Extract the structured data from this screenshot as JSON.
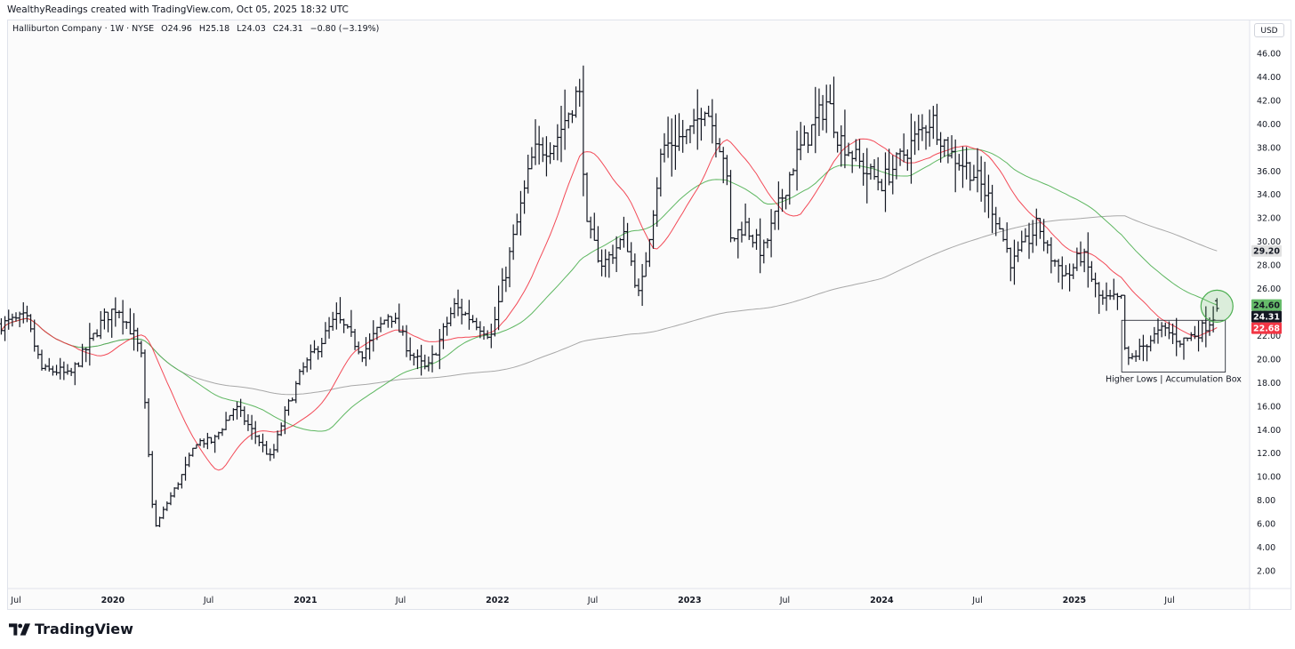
{
  "header": {
    "credit": "WealthyReadings created with TradingView.com, Oct 05, 2025 18:32 UTC",
    "currency": "USD"
  },
  "legend": {
    "title": "Halliburton Company · 1W · NYSE",
    "open": "O24.96",
    "high": "H25.18",
    "low": "L24.03",
    "close": "C24.31",
    "change": "−0.80 (−3.19%)"
  },
  "brand": {
    "name": "TradingView",
    "logo_icon": "tradingview-logo-icon"
  },
  "colors": {
    "background": "#fbfbfb",
    "bars": "#131722",
    "ma_fast": "#f23645",
    "ma_mid": "#089981",
    "ma_mid_line": "#4caf50",
    "ma_slow": "#9e9e9e",
    "label_last_bg": "#131722",
    "label_fast_bg": "#f23645",
    "label_mid_bg": "#66bb6a",
    "label_slow_bg": "#e0e0e0",
    "circle": "#4caf50"
  },
  "chart_data": {
    "type": "ohlc",
    "interval": "weekly",
    "y_range": [
      0.5,
      48.5
    ],
    "y_ticks": [
      "2.00",
      "4.00",
      "6.00",
      "8.00",
      "10.00",
      "12.00",
      "14.00",
      "16.00",
      "18.00",
      "20.00",
      "22.00",
      "24.00",
      "26.00",
      "28.00",
      "30.00",
      "32.00",
      "34.00",
      "36.00",
      "38.00",
      "40.00",
      "42.00",
      "44.00",
      "46.00"
    ],
    "x_labels": [
      {
        "label": "Jul",
        "date": "2019-07-01"
      },
      {
        "label": "2020",
        "date": "2020-01-01"
      },
      {
        "label": "Jul",
        "date": "2020-07-01"
      },
      {
        "label": "2021",
        "date": "2021-01-01"
      },
      {
        "label": "Jul",
        "date": "2021-07-01"
      },
      {
        "label": "2022",
        "date": "2022-01-01"
      },
      {
        "label": "Jul",
        "date": "2022-07-01"
      },
      {
        "label": "2023",
        "date": "2023-01-01"
      },
      {
        "label": "Jul",
        "date": "2023-07-01"
      },
      {
        "label": "2024",
        "date": "2024-01-01"
      },
      {
        "label": "Jul",
        "date": "2024-07-01"
      },
      {
        "label": "2025",
        "date": "2025-01-01"
      },
      {
        "label": "Jul",
        "date": "2025-07-01"
      }
    ],
    "price_path": [
      [
        "2019-06-10",
        23.0
      ],
      [
        "2019-07-20",
        23.5
      ],
      [
        "2019-08-20",
        19.0
      ],
      [
        "2019-09-20",
        19.0
      ],
      [
        "2019-10-10",
        18.5
      ],
      [
        "2019-11-20",
        21.5
      ],
      [
        "2019-12-15",
        23.5
      ],
      [
        "2020-01-10",
        24.5
      ],
      [
        "2020-02-10",
        22.0
      ],
      [
        "2020-02-25",
        20.0
      ],
      [
        "2020-03-05",
        14.0
      ],
      [
        "2020-03-20",
        5.5
      ],
      [
        "2020-04-10",
        7.5
      ],
      [
        "2020-05-10",
        10.0
      ],
      [
        "2020-06-08",
        13.0
      ],
      [
        "2020-07-10",
        13.0
      ],
      [
        "2020-08-20",
        16.0
      ],
      [
        "2020-09-20",
        14.0
      ],
      [
        "2020-10-28",
        11.5
      ],
      [
        "2020-11-20",
        15.0
      ],
      [
        "2020-12-25",
        19.0
      ],
      [
        "2021-03-01",
        23.5
      ],
      [
        "2021-04-20",
        20.5
      ],
      [
        "2021-06-10",
        24.0
      ],
      [
        "2021-07-20",
        20.5
      ],
      [
        "2021-08-20",
        19.0
      ],
      [
        "2021-10-10",
        24.5
      ],
      [
        "2021-11-25",
        23.0
      ],
      [
        "2021-12-20",
        22.0
      ],
      [
        "2022-01-30",
        30.0
      ],
      [
        "2022-03-10",
        37.5
      ],
      [
        "2022-04-20",
        38.5
      ],
      [
        "2022-06-05",
        43.0
      ],
      [
        "2022-06-20",
        31.0
      ],
      [
        "2022-07-20",
        28.0
      ],
      [
        "2022-09-01",
        30.5
      ],
      [
        "2022-09-28",
        25.0
      ],
      [
        "2022-11-10",
        38.0
      ],
      [
        "2023-01-10",
        39.5
      ],
      [
        "2023-01-28",
        42.0
      ],
      [
        "2023-03-10",
        37.0
      ],
      [
        "2023-03-20",
        30.0
      ],
      [
        "2023-04-15",
        31.5
      ],
      [
        "2023-05-20",
        29.0
      ],
      [
        "2023-07-20",
        37.0
      ],
      [
        "2023-09-20",
        42.0
      ],
      [
        "2023-10-10",
        39.0
      ],
      [
        "2023-12-01",
        36.0
      ],
      [
        "2024-01-01",
        35.0
      ],
      [
        "2024-03-01",
        38.5
      ],
      [
        "2024-04-05",
        40.5
      ],
      [
        "2024-05-10",
        37.5
      ],
      [
        "2024-06-20",
        36.0
      ],
      [
        "2024-07-25",
        33.5
      ],
      [
        "2024-09-05",
        28.0
      ],
      [
        "2024-10-25",
        31.5
      ],
      [
        "2024-11-12",
        29.0
      ],
      [
        "2024-12-20",
        27.0
      ],
      [
        "2025-01-15",
        29.0
      ],
      [
        "2025-02-20",
        25.0
      ],
      [
        "2025-04-01",
        25.0
      ],
      [
        "2025-04-09",
        19.5
      ],
      [
        "2025-05-20",
        21.5
      ],
      [
        "2025-06-20",
        22.5
      ],
      [
        "2025-07-25",
        21.5
      ],
      [
        "2025-08-30",
        22.5
      ],
      [
        "2025-09-20",
        23.5
      ],
      [
        "2025-10-03",
        24.6
      ]
    ],
    "last_bar": {
      "date": "2025-09-29",
      "open": 24.96,
      "high": 25.18,
      "low": 24.03,
      "close": 24.31
    },
    "moving_averages": [
      {
        "period": 20,
        "color_key": "ma_fast",
        "last": 22.68
      },
      {
        "period": 50,
        "color_key": "ma_mid_line",
        "last": 24.6
      },
      {
        "period": 200,
        "color_key": "ma_slow",
        "last": 29.2
      }
    ],
    "price_labels": [
      {
        "value": 29.2,
        "text": "29.20",
        "style": "slow"
      },
      {
        "value": 24.6,
        "text": "24.60",
        "style": "mid"
      },
      {
        "value": 24.31,
        "text": "24.31",
        "style": "last"
      },
      {
        "value": 22.68,
        "text": "22.68",
        "style": "fast"
      }
    ],
    "annotations": [
      {
        "kind": "rectangle",
        "date_from": "2025-04-01",
        "date_to": "2025-10-15",
        "price_from": 18.9,
        "price_to": 23.3,
        "label": "Higher Lows | Accumulation Box"
      },
      {
        "kind": "circle",
        "date": "2025-09-29",
        "price": 24.5
      }
    ]
  }
}
